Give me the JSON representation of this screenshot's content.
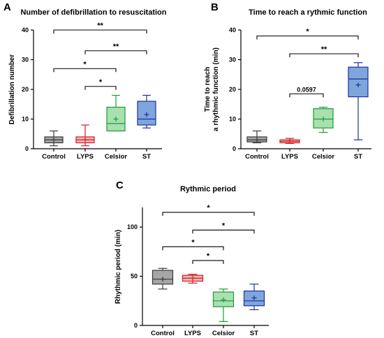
{
  "chart_data": [
    {
      "panel": "A",
      "type": "box",
      "title": "Number of defibrillation to resuscitation",
      "ylabel": "Defibrillation number",
      "xlabel": "",
      "ylim": [
        0,
        40
      ],
      "yticks": [
        0,
        10,
        20,
        30,
        40
      ],
      "categories": [
        "Control",
        "LYPS",
        "Celsior",
        "ST"
      ],
      "series": [
        {
          "min": 1,
          "q1": 2,
          "median": 3,
          "q3": 4,
          "max": 6,
          "mean": 3
        },
        {
          "min": 1,
          "q1": 2,
          "median": 3,
          "q3": 4,
          "max": 8,
          "mean": 3
        },
        {
          "min": 6,
          "q1": 6,
          "median": 8.5,
          "q3": 14,
          "max": 18,
          "mean": 10
        },
        {
          "min": 7,
          "q1": 8,
          "median": 10,
          "q3": 16,
          "max": 18,
          "mean": 11.5
        }
      ],
      "significance": [
        {
          "from": 0,
          "to": 3,
          "y": 40,
          "label": "**"
        },
        {
          "from": 1,
          "to": 3,
          "y": 33,
          "label": "**"
        },
        {
          "from": 0,
          "to": 2,
          "y": 27,
          "label": "*"
        },
        {
          "from": 1,
          "to": 2,
          "y": 21,
          "label": "*"
        }
      ]
    },
    {
      "panel": "B",
      "type": "box",
      "title": "Time to reach a rythmic function",
      "ylabel": "Time to reach a rhythmic function (min)",
      "ylabel_lines": [
        "Time to reach",
        "a rhythmic function (min)"
      ],
      "xlabel": "",
      "ylim": [
        0,
        40
      ],
      "yticks": [
        0,
        10,
        20,
        30,
        40
      ],
      "categories": [
        "Control",
        "LYPS",
        "Celsior",
        "ST"
      ],
      "series": [
        {
          "min": 2,
          "q1": 2.3,
          "median": 3,
          "q3": 4,
          "max": 6,
          "mean": 3
        },
        {
          "min": 1.8,
          "q1": 2,
          "median": 2.5,
          "q3": 3,
          "max": 3.5,
          "mean": 2.5
        },
        {
          "min": 5.5,
          "q1": 7,
          "median": 10,
          "q3": 13.5,
          "max": 14,
          "mean": 10
        },
        {
          "min": 3,
          "q1": 17.5,
          "median": 23.5,
          "q3": 27.5,
          "max": 29,
          "mean": 21.5
        }
      ],
      "significance": [
        {
          "from": 0,
          "to": 3,
          "y": 38,
          "label": "*"
        },
        {
          "from": 1,
          "to": 3,
          "y": 32,
          "label": "**"
        },
        {
          "from": 1,
          "to": 2,
          "y": 18.5,
          "label": "0.0597"
        }
      ]
    },
    {
      "panel": "C",
      "type": "box",
      "title": "Rythmic period",
      "ylabel": "Rhythmic period (min)",
      "xlabel": "",
      "ylim": [
        0,
        120
      ],
      "yticks": [
        0,
        50,
        100
      ],
      "categories": [
        "Control",
        "LYPS",
        "Celsior",
        "ST"
      ],
      "series": [
        {
          "min": 37,
          "q1": 42,
          "median": 47,
          "q3": 56,
          "max": 58,
          "mean": 47
        },
        {
          "min": 43,
          "q1": 45,
          "median": 48,
          "q3": 51,
          "max": 52,
          "mean": 48
        },
        {
          "min": 4,
          "q1": 19,
          "median": 25,
          "q3": 34,
          "max": 37,
          "mean": 26
        },
        {
          "min": 16,
          "q1": 20,
          "median": 25,
          "q3": 35,
          "max": 42,
          "mean": 28
        }
      ],
      "significance": [
        {
          "from": 0,
          "to": 3,
          "y": 115,
          "label": "*"
        },
        {
          "from": 1,
          "to": 3,
          "y": 97,
          "label": "*"
        },
        {
          "from": 0,
          "to": 2,
          "y": 80,
          "label": "*"
        },
        {
          "from": 1,
          "to": 2,
          "y": 66,
          "label": "*"
        }
      ]
    }
  ],
  "colors": {
    "stroke": [
      "#3a3a3a",
      "#d11f26",
      "#1e9a36",
      "#1e2f9c"
    ],
    "fill": [
      "#a6a6a6",
      "#f2b6b6",
      "#a8e0b0",
      "#7ea6dc"
    ]
  }
}
